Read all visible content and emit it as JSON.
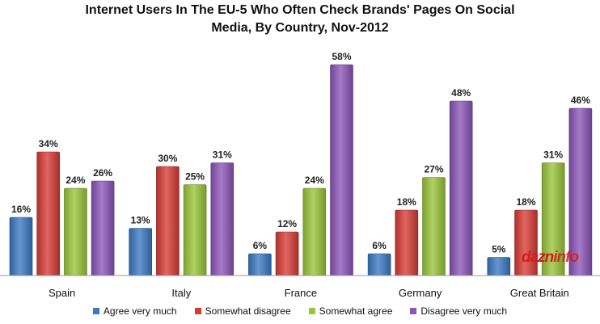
{
  "chart_data": {
    "type": "bar",
    "title_lines": [
      "Internet Users In The EU-5 Who Often Check Brands' Pages On Social",
      "Media, By Country, Nov-2012"
    ],
    "categories": [
      "Spain",
      "Italy",
      "France",
      "Germany",
      "Great Britain"
    ],
    "series": [
      {
        "name": "Agree very much",
        "color": "#3a78c3",
        "values": [
          16,
          13,
          6,
          6,
          5
        ]
      },
      {
        "name": "Somewhat disagree",
        "color": "#d83b35",
        "values": [
          34,
          30,
          12,
          18,
          18
        ]
      },
      {
        "name": "Somewhat agree",
        "color": "#9ac53a",
        "values": [
          24,
          25,
          24,
          27,
          31
        ]
      },
      {
        "name": "Disagree very much",
        "color": "#8b55b8",
        "values": [
          26,
          31,
          58,
          48,
          46
        ]
      }
    ],
    "value_suffix": "%",
    "ylim": [
      0,
      60
    ],
    "grid": false,
    "legend_position": "bottom"
  },
  "watermark": {
    "part1": "dazn",
    "part2": "info"
  }
}
